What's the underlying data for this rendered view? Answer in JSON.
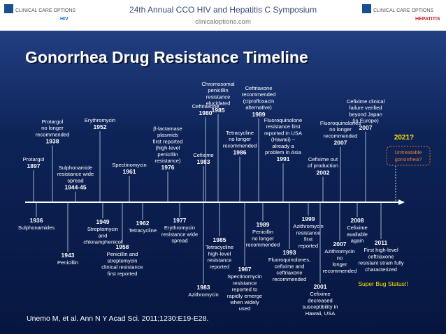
{
  "header": {
    "title": "24th Annual CCO HIV and Hepatitis C Symposium",
    "url": "clinicaloptions.com",
    "logo_left": {
      "brand": "CLINICAL CARE OPTIONS",
      "sub": "HIV"
    },
    "logo_right": {
      "brand": "CLINICAL CARE OPTIONS",
      "sub": "HEPATITIS"
    }
  },
  "slide_title": "Gonorrhea Drug Resistance Timeline",
  "above": [
    {
      "lines": [
        "Protargol"
      ],
      "year": "1897"
    },
    {
      "lines": [
        "Protargol",
        "no longer",
        "recommended"
      ],
      "year": "1938"
    },
    {
      "lines": [
        "Sulphonamide",
        "resistance wide",
        "spread"
      ],
      "year": "1944-45"
    },
    {
      "lines": [
        "Erythromycin"
      ],
      "year": "1952"
    },
    {
      "lines": [
        "Spectinomycin"
      ],
      "year": "1961"
    },
    {
      "lines": [
        "β-lactamase",
        "plasmids",
        "first reported",
        "(high-level",
        "penicillin",
        "resistance)"
      ],
      "year": "1976"
    },
    {
      "lines": [
        "Ceftriaxone"
      ],
      "year": "1980"
    },
    {
      "lines": [
        "Cefixime"
      ],
      "year": "1983"
    },
    {
      "lines": [
        "Chromosomal",
        "penicillin",
        "resistance",
        "elucidated"
      ],
      "year": "1985"
    },
    {
      "lines": [
        "Ceftriaxone",
        "recommended",
        "(ciprofloxacin",
        "alternative)"
      ],
      "year": "1989"
    },
    {
      "lines": [
        "Tetracycline",
        "no longer",
        "recommended"
      ],
      "year": "1986"
    },
    {
      "lines": [
        "Fluoroquinolone",
        "resistance first",
        "reported in USA",
        "(Hawaii) –",
        "already a",
        "problem in Asia"
      ],
      "year": "1991"
    },
    {
      "lines": [
        "Cefixime clinical",
        "failure verified",
        "beyond Japan",
        "(in Europe)"
      ],
      "year": "2007"
    },
    {
      "lines": [
        "Fluoroquinolones",
        "no longer",
        "recommended"
      ],
      "year": "2007"
    },
    {
      "lines": [
        "Cefixime out",
        "of production"
      ],
      "year": "2002"
    }
  ],
  "below": [
    {
      "year": "1936",
      "lines": [
        "Sulphonamides"
      ]
    },
    {
      "year": "1949",
      "lines": [
        "Streptomycin",
        "and",
        "chloramphenicol"
      ]
    },
    {
      "year": "1943",
      "lines": [
        "Penicillin"
      ]
    },
    {
      "year": "1962",
      "lines": [
        "Tetracycline"
      ]
    },
    {
      "year": "1977",
      "lines": [
        "Erythromycin",
        "resistance wide",
        "spread"
      ]
    },
    {
      "year": "1958",
      "lines": [
        "Penicillin and",
        "streptomycin",
        "clinical resistance",
        "first reported"
      ]
    },
    {
      "year": "1985",
      "lines": [
        "Tetracycline",
        "high-level",
        "resistance",
        "reported"
      ]
    },
    {
      "year": "1983",
      "lines": [
        "Azithromycin"
      ]
    },
    {
      "year": "1987",
      "lines": [
        "Spectinomycin",
        "resistance",
        "reported to",
        "rapidly emerge",
        "when widely",
        "used"
      ]
    },
    {
      "year": "1989",
      "lines": [
        "Penicillin",
        "no longer",
        "recommended"
      ]
    },
    {
      "year": "1993",
      "lines": [
        "Fluoroquinolones,",
        "cefixime and",
        "ceftriaxone",
        "recommended"
      ]
    },
    {
      "year": "1999",
      "lines": [
        "Azithromycin",
        "resistance",
        "first",
        "reported"
      ]
    },
    {
      "year": "2001",
      "lines": [
        "Cefixime",
        "decreased",
        "susceptibility in",
        "Hawaii, USA"
      ]
    },
    {
      "year": "2007",
      "lines": [
        "Azithromycin",
        "no",
        "longer",
        "recommended"
      ]
    },
    {
      "year": "2008",
      "lines": [
        "Cefixime",
        "available",
        "again"
      ]
    },
    {
      "year": "2011",
      "lines": [
        "First high-level",
        "ceftriaxone",
        "resistant strain fully",
        "characterized"
      ]
    }
  ],
  "forecast": {
    "year": "2021?",
    "lines": [
      "Untreatable",
      "gonorrhea?"
    ]
  },
  "callout": "Super Bug Status!!",
  "citation": "Unemo M, et al. Ann N Y Acad Sci. 2011;1230:E19-E28."
}
